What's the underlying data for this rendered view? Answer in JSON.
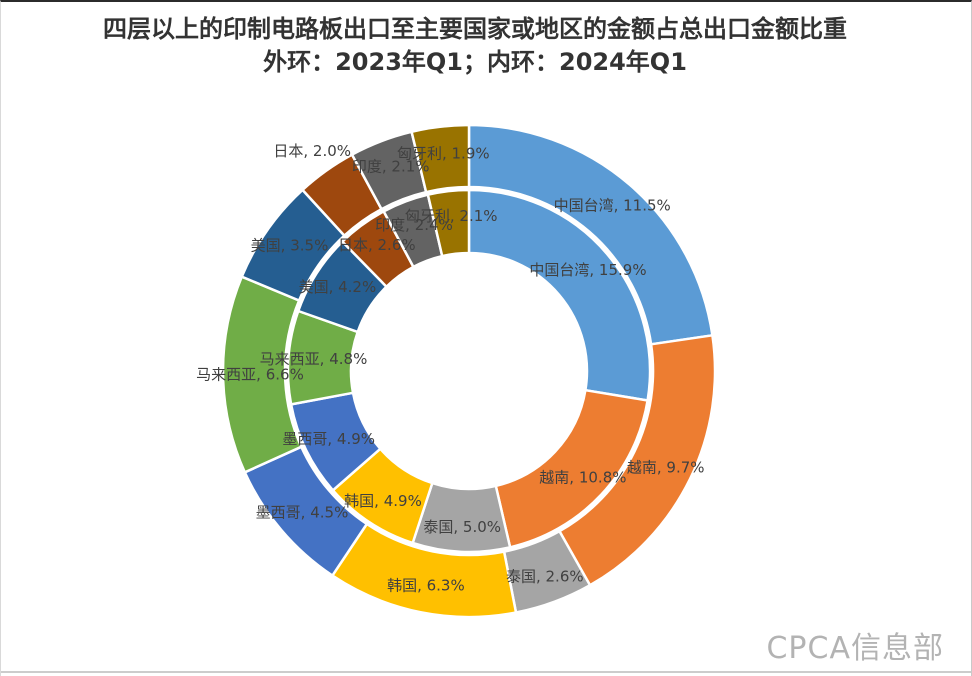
{
  "title": {
    "line1": "四层以上的印制电路板出口至主要国家或地区的金额占总出口金额比重",
    "line2": "外环：2023年Q1；内环：2024年Q1"
  },
  "watermark": "CPCA信息部",
  "chart_data": {
    "type": "doughnut",
    "title": "四层以上的印制电路板出口至主要国家或地区的金额占总出口金额比重",
    "subtitle": "外环：2023年Q1；内环：2024年Q1",
    "unit": "%",
    "categories": [
      "中国台湾",
      "越南",
      "泰国",
      "韩国",
      "墨西哥",
      "马来西亚",
      "美国",
      "日本",
      "印度",
      "匈牙利"
    ],
    "series": [
      {
        "name": "2023年Q1",
        "ring": "outer",
        "values": [
          11.5,
          9.7,
          2.6,
          6.3,
          4.5,
          6.6,
          3.5,
          2.0,
          2.1,
          1.9
        ]
      },
      {
        "name": "2024年Q1",
        "ring": "inner",
        "values": [
          15.9,
          10.8,
          5.0,
          4.9,
          4.9,
          4.8,
          4.2,
          2.6,
          2.4,
          2.1
        ]
      }
    ],
    "colors": [
      "#5B9BD5",
      "#ED7D31",
      "#A5A5A5",
      "#FFC000",
      "#4472C4",
      "#70AD47",
      "#255E91",
      "#9E480E",
      "#636363",
      "#997300"
    ],
    "label_format": "{name}, {value}%",
    "label_color": "#404040",
    "legend": "none",
    "layout": {
      "center": [
        468,
        369
      ],
      "start_angle": 0,
      "clockwise": true,
      "radii": {
        "hole": 118,
        "inner_ring": [
          118,
          181
        ],
        "outer_ring": [
          184,
          246
        ]
      },
      "label_radius": {
        "inner": 156,
        "outer": 219
      },
      "label_radius_overrides": {
        "outer": {
          "日本": 270
        },
        "inner": {}
      },
      "slice_border_color": "#ffffff",
      "slice_border_width": 2.5
    }
  }
}
